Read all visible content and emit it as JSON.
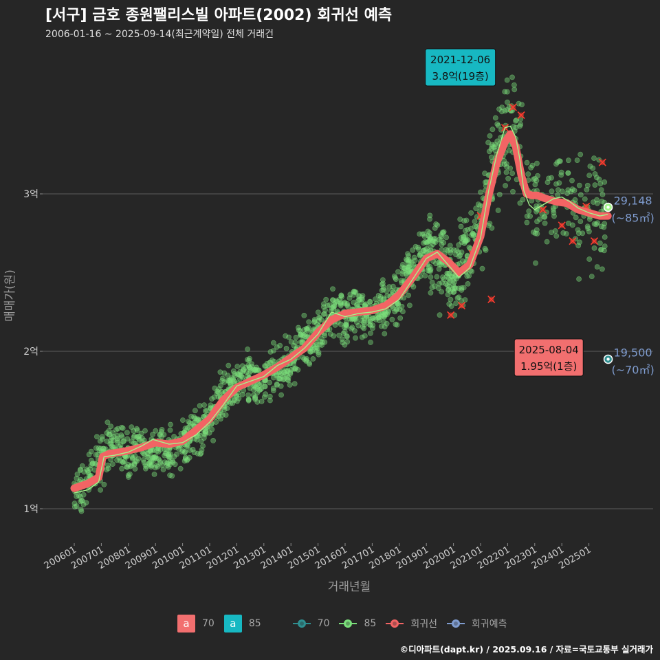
{
  "title": "[서구] 금호 종원팰리스빌 아파트(2002) 회귀선 예측",
  "subtitle": "2006-01-16 ~ 2025-09-14(최근계약일) 전체 거래건",
  "source": "©디아파트(dapt.kr) / 2025.09.16 / 자료=국토교통부 실거래가",
  "colors": {
    "background": "#262626",
    "grid": "#5c5c5c",
    "scatter_85": "#7be07b",
    "regression": "#f26464",
    "avg_line_85": "#a5f58c",
    "size_70": "#2f8f90",
    "prediction": "#7f9ccf",
    "label_max": "#17b8c2",
    "label_recent": "#f26f6f"
  },
  "legend": {
    "boxes": [
      {
        "glyph": "a",
        "label": "70",
        "color": "#f26f6f"
      },
      {
        "glyph": "a",
        "label": "85",
        "color": "#17b8c2"
      }
    ],
    "lines": [
      {
        "label": "70",
        "color": "#2f8f90"
      },
      {
        "label": "85",
        "color": "#7be07b"
      },
      {
        "label": "회귀선",
        "color": "#f26464"
      },
      {
        "label": "회귀예측",
        "color": "#7f9ccf"
      }
    ]
  },
  "chart_data": {
    "type": "scatter",
    "xlabel": "거래년월",
    "ylabel": "매매가(원)",
    "x_ticks": [
      "200601",
      "200701",
      "200801",
      "200901",
      "201001",
      "201101",
      "201201",
      "201301",
      "201401",
      "201501",
      "201601",
      "201701",
      "201801",
      "201901",
      "202001",
      "202101",
      "202201",
      "202301",
      "202401",
      "202501"
    ],
    "y_ticks": [
      {
        "value": 1,
        "label": "1억"
      },
      {
        "value": 2,
        "label": "2억"
      },
      {
        "value": 3,
        "label": "3억"
      }
    ],
    "ylim": [
      0.8,
      4.3
    ],
    "xlim": [
      2005.6,
      2026.2
    ],
    "grid": "horizontal",
    "legend_position": "bottom",
    "regression_series": {
      "name": "회귀선",
      "x": [
        2006.0,
        2006.5,
        2006.9,
        2007.05,
        2007.3,
        2007.7,
        2008.0,
        2008.5,
        2009.0,
        2009.5,
        2010.0,
        2010.5,
        2011.0,
        2011.5,
        2012.0,
        2012.5,
        2013.0,
        2013.5,
        2014.0,
        2014.5,
        2015.0,
        2015.5,
        2016.0,
        2016.5,
        2017.0,
        2017.5,
        2018.0,
        2018.5,
        2019.0,
        2019.4,
        2019.8,
        2020.2,
        2020.6,
        2021.0,
        2021.3,
        2021.6,
        2021.9,
        2022.1,
        2022.3,
        2022.5,
        2022.7,
        2022.9,
        2023.1,
        2023.4,
        2023.8,
        2024.2,
        2024.6,
        2025.0,
        2025.4,
        2025.7
      ],
      "y": [
        1.13,
        1.16,
        1.2,
        1.33,
        1.35,
        1.36,
        1.37,
        1.39,
        1.42,
        1.41,
        1.43,
        1.5,
        1.57,
        1.69,
        1.77,
        1.81,
        1.85,
        1.9,
        1.96,
        2.02,
        2.12,
        2.2,
        2.24,
        2.25,
        2.26,
        2.29,
        2.36,
        2.47,
        2.59,
        2.62,
        2.57,
        2.5,
        2.55,
        2.73,
        2.99,
        3.2,
        3.33,
        3.38,
        3.3,
        3.12,
        3.0,
        2.99,
        2.99,
        2.97,
        2.95,
        2.94,
        2.9,
        2.88,
        2.86,
        2.86
      ]
    },
    "average_series": {
      "name": "85",
      "x": [
        2006.0,
        2006.5,
        2006.9,
        2007.1,
        2007.5,
        2008.0,
        2008.5,
        2008.9,
        2009.5,
        2010.0,
        2010.5,
        2011.0,
        2011.5,
        2012.0,
        2012.5,
        2013.0,
        2013.5,
        2014.0,
        2014.5,
        2015.0,
        2015.5,
        2016.0,
        2016.5,
        2017.0,
        2017.5,
        2018.0,
        2018.5,
        2019.0,
        2019.4,
        2019.8,
        2020.2,
        2020.6,
        2021.0,
        2021.3,
        2021.6,
        2021.9,
        2022.1,
        2022.3,
        2022.45,
        2022.6,
        2022.8,
        2023.0,
        2023.3,
        2023.7,
        2024.0,
        2024.3,
        2024.6,
        2025.0,
        2025.4,
        2025.7
      ],
      "y": [
        1.1,
        1.12,
        1.17,
        1.33,
        1.34,
        1.36,
        1.4,
        1.44,
        1.41,
        1.42,
        1.47,
        1.55,
        1.66,
        1.78,
        1.81,
        1.84,
        1.91,
        1.95,
        2.02,
        2.11,
        2.25,
        2.22,
        2.24,
        2.25,
        2.27,
        2.33,
        2.46,
        2.59,
        2.63,
        2.55,
        2.47,
        2.53,
        2.72,
        3.02,
        3.25,
        3.42,
        3.43,
        3.36,
        3.22,
        3.02,
        2.93,
        2.9,
        2.93,
        2.97,
        2.98,
        2.95,
        2.91,
        2.88,
        2.86,
        2.87
      ]
    },
    "scatter_series": {
      "name": "85",
      "x": [
        2006.1,
        2006.5,
        2006.9,
        2007.2,
        2007.6,
        2008.0,
        2008.4,
        2008.8,
        2009.2,
        2009.6,
        2010.0,
        2010.4,
        2010.8,
        2011.2,
        2011.6,
        2012.0,
        2012.4,
        2012.8,
        2013.2,
        2013.6,
        2014.0,
        2014.4,
        2014.8,
        2015.2,
        2015.6,
        2016.0,
        2016.4,
        2016.8,
        2017.2,
        2017.6,
        2018.0,
        2018.4,
        2018.8,
        2019.2,
        2019.6,
        2020.0,
        2020.4,
        2020.8,
        2021.2,
        2021.6,
        2022.0,
        2022.3,
        2022.6,
        2023.0,
        2023.4,
        2023.8,
        2024.2,
        2024.6,
        2025.0,
        2025.4
      ],
      "y": [
        1.12,
        1.2,
        1.3,
        1.38,
        1.4,
        1.35,
        1.42,
        1.33,
        1.4,
        1.36,
        1.4,
        1.48,
        1.55,
        1.62,
        1.74,
        1.8,
        1.83,
        1.79,
        1.85,
        1.9,
        1.94,
        2.05,
        2.07,
        2.17,
        2.28,
        2.2,
        2.26,
        2.22,
        2.24,
        2.31,
        2.35,
        2.52,
        2.6,
        2.66,
        2.54,
        2.44,
        2.56,
        2.7,
        2.98,
        3.28,
        3.4,
        3.42,
        3.05,
        2.95,
        2.9,
        2.98,
        3.0,
        2.84,
        2.9,
        2.86
      ]
    },
    "crosses": {
      "x": [
        2019.9,
        2020.3,
        2020.7,
        2021.0,
        2021.4,
        2021.9,
        2022.2,
        2022.5,
        2023.3,
        2024.0,
        2024.4,
        2024.9,
        2025.2,
        2025.5
      ],
      "y": [
        2.23,
        2.29,
        2.62,
        2.86,
        2.33,
        3.42,
        3.55,
        3.5,
        2.9,
        2.8,
        2.7,
        2.92,
        2.7,
        3.2
      ]
    },
    "annotations": [
      {
        "label_date": "2021-12-06",
        "label_value": "3.8억(19층)",
        "x": 2021.93,
        "y": 3.8,
        "style": "max"
      },
      {
        "label_date": "2025-08-04",
        "label_value": "1.95억(1층)",
        "x": 2025.6,
        "y": 1.95,
        "style": "recent"
      }
    ],
    "endpoints": [
      {
        "name": "85",
        "x": 2025.71,
        "y": 2.915,
        "value": "29,148",
        "size_label": "(~85㎡)"
      },
      {
        "name": "70",
        "x": 2025.71,
        "y": 1.95,
        "value": "19,500",
        "size_label": "(~70㎡)"
      }
    ]
  }
}
